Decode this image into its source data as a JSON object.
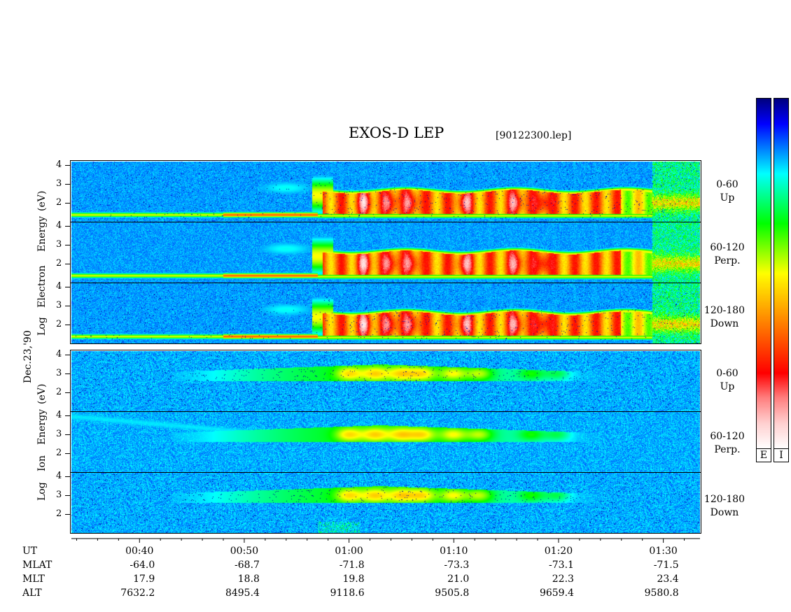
{
  "title": "EXOS-D LEP",
  "subtitle": "[90122300.lep]",
  "date_label": "Dec.23,'90",
  "electron_group": {
    "ylabel_parts": [
      "Log",
      "Electron",
      "Energy",
      "(eV)"
    ],
    "panels": [
      {
        "label_line1": "0-60",
        "label_line2": "Up"
      },
      {
        "label_line1": "60-120",
        "label_line2": "Perp."
      },
      {
        "label_line1": "120-180",
        "label_line2": "Down"
      }
    ]
  },
  "ion_group": {
    "ylabel_parts": [
      "Log",
      "Ion",
      "Energy",
      "(eV)"
    ],
    "panels": [
      {
        "label_line1": "0-60",
        "label_line2": "Up"
      },
      {
        "label_line1": "60-120",
        "label_line2": "Perp."
      },
      {
        "label_line1": "120-180",
        "label_line2": "Down"
      }
    ]
  },
  "colorbar": {
    "e_label": "E",
    "i_label": "I",
    "colors": [
      "#000080",
      "#0000ff",
      "#0080ff",
      "#00ffff",
      "#00ff80",
      "#00ff00",
      "#80ff00",
      "#ffff00",
      "#ffc000",
      "#ff8000",
      "#ff4000",
      "#ff0000",
      "#ff8080",
      "#ffd0d0",
      "#ffffff"
    ]
  },
  "chart_data": {
    "type": "heatmap",
    "title": "EXOS-D LEP",
    "subtitle": "[90122300.lep]",
    "y_ticks": [
      "4",
      "3",
      "2"
    ],
    "ylim": [
      1,
      4
    ],
    "x_ticks": [
      "00:40",
      "00:50",
      "01:00",
      "01:10",
      "01:20",
      "01:30"
    ],
    "x_range_minutes": [
      33.5,
      93.5
    ],
    "rows": [
      {
        "name": "UT",
        "values": [
          "00:40",
          "00:50",
          "01:00",
          "01:10",
          "01:20",
          "01:30"
        ]
      },
      {
        "name": "MLAT",
        "values": [
          "-64.0",
          "-68.7",
          "-71.8",
          "-73.3",
          "-73.1",
          "-71.5"
        ]
      },
      {
        "name": "MLT",
        "values": [
          "17.9",
          "18.8",
          "19.8",
          "21.0",
          "22.3",
          "23.4"
        ]
      },
      {
        "name": "ALT",
        "values": [
          "7632.2",
          "8495.4",
          "9118.6",
          "9505.8",
          "9659.4",
          "9580.8"
        ]
      }
    ]
  }
}
